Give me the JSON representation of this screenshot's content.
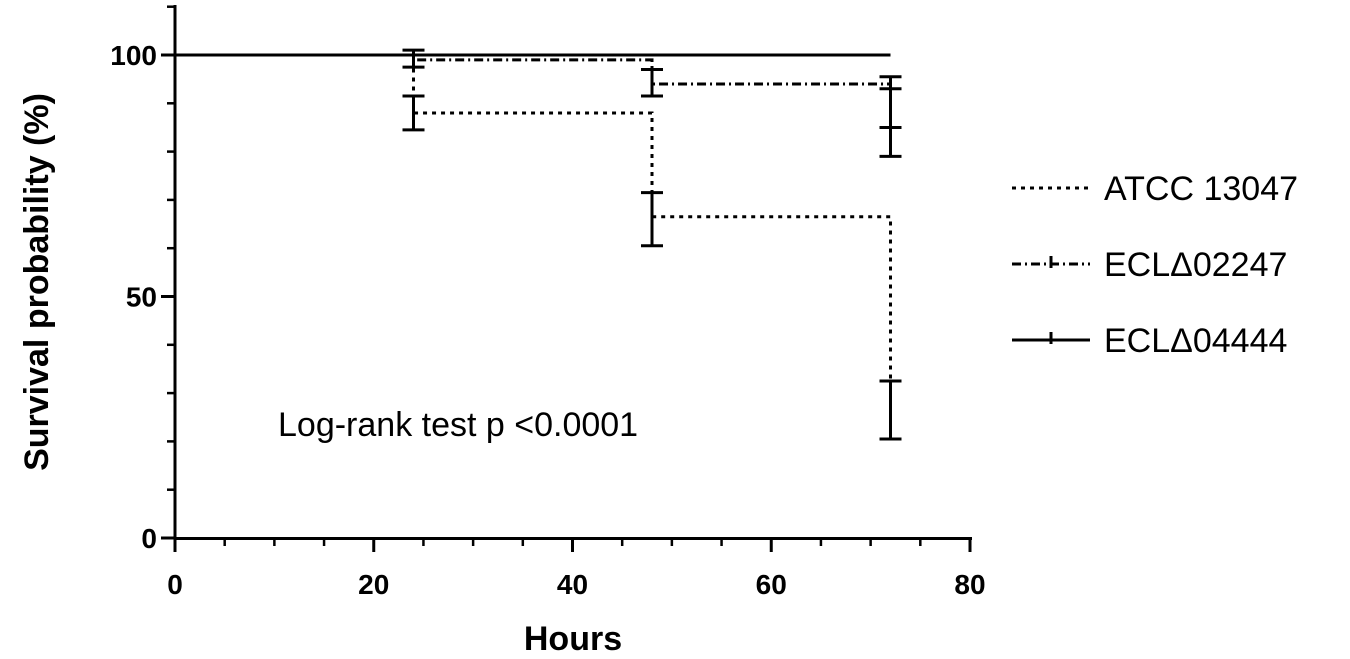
{
  "chart_data": {
    "type": "line",
    "subtype": "kaplan-meier-step",
    "xlabel": "Hours",
    "ylabel": "Survival probability (%)",
    "xlim": [
      0,
      80
    ],
    "ylim": [
      0,
      100
    ],
    "xticks": [
      "0",
      "20",
      "40",
      "60",
      "80"
    ],
    "yticks": [
      "0",
      "50",
      "100"
    ],
    "grid": false,
    "legend_position": "right",
    "annotation": "Log-rank test p <0.0001",
    "series": [
      {
        "name": "ATCC 13047",
        "style": "dotted",
        "x": [
          0,
          24,
          48,
          72
        ],
        "y": [
          100,
          88,
          66.5,
          26.5
        ],
        "err_low": [
          null,
          84.5,
          60.5,
          20.5
        ],
        "err_high": [
          null,
          91.5,
          71.5,
          32.5
        ]
      },
      {
        "name": "ECLΔ02247",
        "style": "dash-dot",
        "x": [
          0,
          24,
          48,
          72
        ],
        "y": [
          100,
          99,
          94,
          89
        ],
        "err_low": [
          null,
          97.5,
          91.5,
          85
        ],
        "err_high": [
          null,
          101,
          97,
          93
        ]
      },
      {
        "name": "ECLΔ04444",
        "style": "solid",
        "x": [
          0,
          24,
          48,
          72
        ],
        "y": [
          100,
          100,
          100,
          100
        ],
        "err_low": [
          null,
          null,
          null,
          79
        ],
        "err_high": [
          null,
          null,
          null,
          95.5
        ]
      }
    ]
  }
}
